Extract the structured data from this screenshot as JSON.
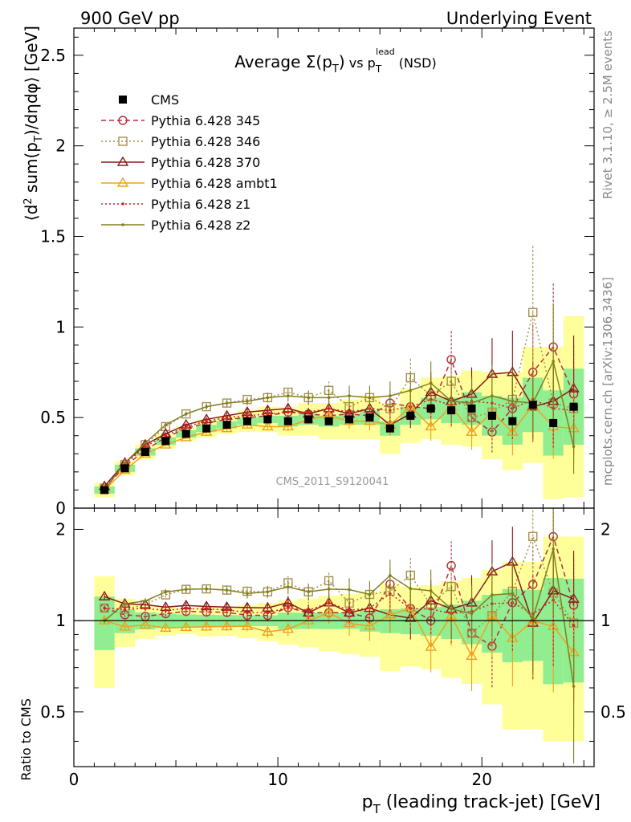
{
  "header": {
    "left": "900 GeV pp",
    "right": "Underlying Event",
    "side_top": "Rivet 3.1.10, ≥ 2.5M events",
    "side_bottom": "mcplots.cern.ch [arXiv:1306.3436]",
    "watermark": "CMS_2011_S9120041"
  },
  "chart_data": {
    "type": "line",
    "title_parts": {
      "pre": "Average ",
      "sigma": "Σ(p",
      "sub1": "T",
      "close": ")",
      "vs": " vs p",
      "sub2": "T",
      "sup2": "lead",
      "post": " (NSD)"
    },
    "ylabel": "⟨d² sum(p_T)/dηdφ⟩ [GeV]",
    "ylabel_parts": {
      "pre": "⟨d",
      "sup": "2",
      "mid": " sum(p",
      "sub": "T",
      "post": ")/dηdφ⟩ [GeV]"
    },
    "ratio_ylabel": "Ratio to CMS",
    "xlabel_parts": {
      "pre": "p",
      "sub": "T",
      "post": " (leading track-jet) [GeV]"
    },
    "xlim": [
      0,
      25.5
    ],
    "ylim": [
      0,
      2.65
    ],
    "ratio_ylim": [
      0.33,
      2.35
    ],
    "xticks": [
      "0",
      "10",
      "20"
    ],
    "xtick_values": [
      0,
      10,
      20
    ],
    "yticks": [
      "0",
      "0.5",
      "1",
      "1.5",
      "2",
      "2.5"
    ],
    "ytick_values": [
      0,
      0.5,
      1,
      1.5,
      2,
      2.5
    ],
    "ratio_yticks": [
      "0.5",
      "1",
      "2"
    ],
    "ratio_ytick_values": [
      0.5,
      1,
      2
    ],
    "legend_position": "top-left",
    "x": [
      1.5,
      2.5,
      3.5,
      4.5,
      5.5,
      6.5,
      7.5,
      8.5,
      9.5,
      10.5,
      11.5,
      12.5,
      13.5,
      14.5,
      15.5,
      16.5,
      17.5,
      18.5,
      19.5,
      20.5,
      21.5,
      22.5,
      23.5,
      24.5
    ],
    "cms": {
      "name": "CMS",
      "values": [
        0.1,
        0.22,
        0.31,
        0.37,
        0.41,
        0.44,
        0.46,
        0.48,
        0.49,
        0.48,
        0.49,
        0.48,
        0.49,
        0.5,
        0.44,
        0.51,
        0.55,
        0.54,
        0.55,
        0.51,
        0.48,
        0.57,
        0.47,
        0.56
      ],
      "band_inner": [
        0.02,
        0.02,
        0.02,
        0.02,
        0.02,
        0.02,
        0.02,
        0.02,
        0.02,
        0.03,
        0.03,
        0.03,
        0.03,
        0.04,
        0.04,
        0.05,
        0.06,
        0.07,
        0.09,
        0.11,
        0.13,
        0.15,
        0.18,
        0.21
      ],
      "band_outer": [
        0.04,
        0.04,
        0.04,
        0.04,
        0.04,
        0.05,
        0.05,
        0.06,
        0.07,
        0.08,
        0.09,
        0.1,
        0.11,
        0.12,
        0.14,
        0.15,
        0.17,
        0.19,
        0.21,
        0.24,
        0.27,
        0.32,
        0.42,
        0.5
      ]
    },
    "series": [
      {
        "name": "Pythia 6.428 345",
        "color": "#b03040",
        "dash": "6,4",
        "marker": "circle",
        "values": [
          0.11,
          0.23,
          0.32,
          0.39,
          0.44,
          0.47,
          0.49,
          0.5,
          0.51,
          0.53,
          0.52,
          0.51,
          0.52,
          0.51,
          0.58,
          0.56,
          0.55,
          0.82,
          0.5,
          0.42,
          0.55,
          0.75,
          0.89,
          0.63
        ]
      },
      {
        "name": "Pythia 6.428 346",
        "color": "#a89050",
        "dash": "2,3",
        "marker": "square",
        "values": [
          0.11,
          0.24,
          0.35,
          0.45,
          0.52,
          0.56,
          0.58,
          0.6,
          0.61,
          0.64,
          0.61,
          0.65,
          0.56,
          0.61,
          0.55,
          0.72,
          0.62,
          0.7,
          0.5,
          0.53,
          0.6,
          1.08,
          0.58,
          0.55
        ]
      },
      {
        "name": "Pythia 6.428 370",
        "color": "#8b1a1a",
        "dash": "",
        "marker": "triangle",
        "values": [
          0.12,
          0.25,
          0.35,
          0.41,
          0.46,
          0.49,
          0.51,
          0.53,
          0.54,
          0.55,
          0.52,
          0.55,
          0.52,
          0.55,
          0.46,
          0.52,
          0.64,
          0.59,
          0.63,
          0.74,
          0.75,
          0.56,
          0.59,
          0.66
        ]
      },
      {
        "name": "Pythia 6.428 ambt1",
        "color": "#f0a020",
        "dash": "",
        "marker": "triangle",
        "values": [
          0.1,
          0.21,
          0.3,
          0.35,
          0.39,
          0.42,
          0.44,
          0.46,
          0.45,
          0.45,
          0.49,
          0.51,
          0.48,
          0.48,
          0.46,
          0.56,
          0.45,
          0.56,
          0.42,
          0.53,
          0.42,
          0.57,
          0.45,
          0.44
        ]
      },
      {
        "name": "Pythia 6.428 z1",
        "color": "#d82020",
        "dash": "2,3",
        "marker": "dot",
        "values": [
          0.11,
          0.24,
          0.34,
          0.4,
          0.45,
          0.48,
          0.5,
          0.51,
          0.52,
          0.53,
          0.53,
          0.55,
          0.53,
          0.55,
          0.54,
          0.56,
          0.6,
          0.57,
          0.59,
          0.58,
          0.55,
          0.6,
          0.55,
          0.54
        ]
      },
      {
        "name": "Pythia 6.428 z2",
        "color": "#808020",
        "dash": "",
        "marker": "dot",
        "values": [
          0.1,
          0.25,
          0.36,
          0.46,
          0.52,
          0.56,
          0.58,
          0.59,
          0.61,
          0.62,
          0.61,
          0.61,
          0.62,
          0.61,
          0.62,
          0.65,
          0.69,
          0.59,
          0.58,
          0.62,
          0.59,
          0.58,
          0.81,
          0.34
        ]
      }
    ]
  }
}
